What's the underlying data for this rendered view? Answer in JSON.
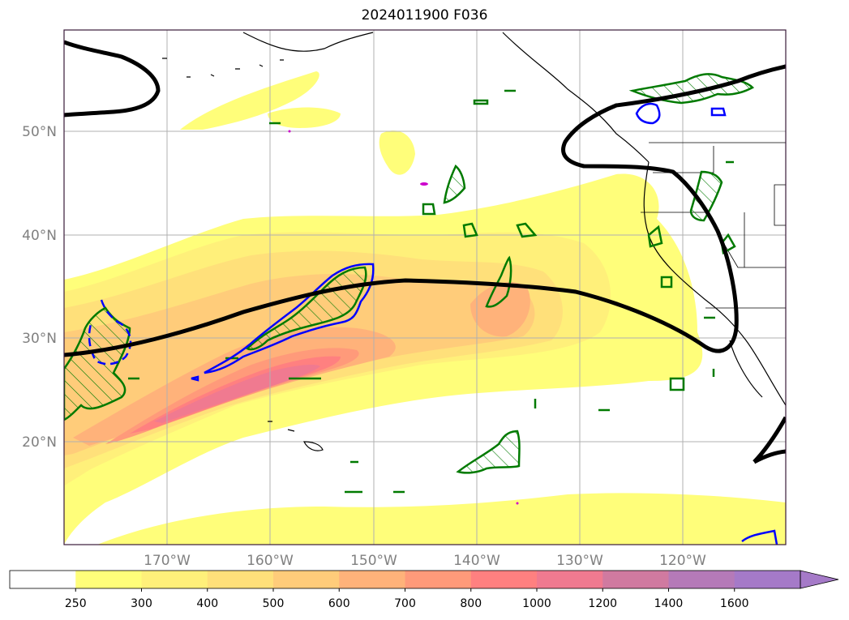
{
  "title": "2024011900 F036",
  "map": {
    "lat_labels": [
      "50°N",
      "40°N",
      "30°N",
      "20°N"
    ],
    "lon_labels": [
      "170°W",
      "160°W",
      "150°W",
      "140°W",
      "130°W",
      "120°W"
    ],
    "gridline_color": "#b0b0b0",
    "tick_label_color": "#808080"
  },
  "legend": {
    "colorbar_ticks": [
      "250",
      "300",
      "400",
      "500",
      "600",
      "700",
      "800",
      "1000",
      "1200",
      "1400",
      "1600"
    ],
    "colors": [
      "#ffffff",
      "#fffe7a",
      "#fff07a",
      "#ffe07a",
      "#ffcc7a",
      "#ffb27a",
      "#ff9a7a",
      "#ff8080",
      "#f07a90",
      "#d07aa0",
      "#b57ab8",
      "#a57ac8"
    ],
    "extend": "max"
  },
  "overlays": {
    "thick_contour_color": "#000000",
    "green_contour_color": "#007a00",
    "blue_contour_color": "#0000ff",
    "magenta_color": "#cc00cc"
  }
}
